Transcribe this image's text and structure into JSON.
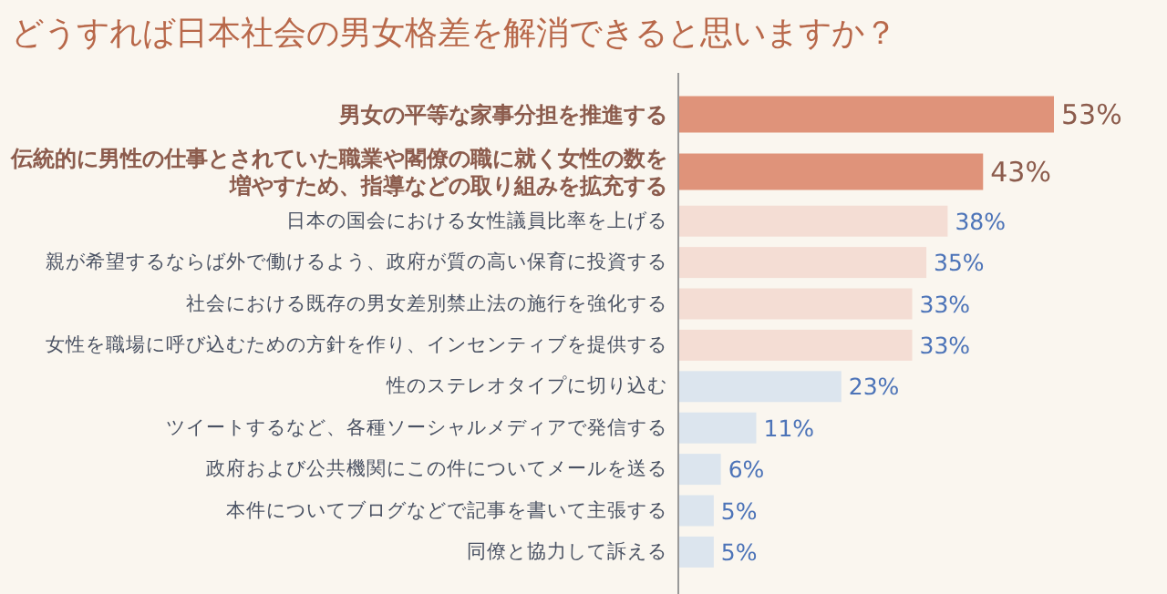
{
  "chart_data": {
    "type": "bar",
    "orientation": "horizontal",
    "title": "どうすれば日本社会の男女格差を解消できると思いますか？",
    "categories": [
      "男女の平等な家事分担を推進する",
      "伝統的に男性の仕事とされていた職業や閣僚の職に就く女性の数を増やすため、指導などの取り組みを拡充する",
      "日本の国会における女性議員比率を上げる",
      "親が希望するならば外で働けるよう、政府が質の高い保育に投資する",
      "社会における既存の男女差別禁止法の施行を強化する",
      "女性を職場に呼び込むための方針を作り、インセンティブを提供する",
      "性のステレオタイプに切り込む",
      "ツイートするなど、各種ソーシャルメディアで発信する",
      "政府および公共機関にこの件についてメールを送る",
      "本件についてブログなどで記事を書いて主張する",
      "同僚と協力して訴える"
    ],
    "values": [
      53,
      43,
      38,
      35,
      33,
      33,
      23,
      11,
      6,
      5,
      5
    ],
    "value_labels": [
      "53%",
      "43%",
      "38%",
      "35%",
      "33%",
      "33%",
      "23%",
      "11%",
      "6%",
      "5%",
      "5%"
    ],
    "colors": [
      "#df937a",
      "#df937a",
      "#f4ddd4",
      "#f4ddd4",
      "#f4ddd4",
      "#f4ddd4",
      "#dce5ee",
      "#dce5ee",
      "#dce5ee",
      "#dce5ee",
      "#dce5ee"
    ]
  }
}
